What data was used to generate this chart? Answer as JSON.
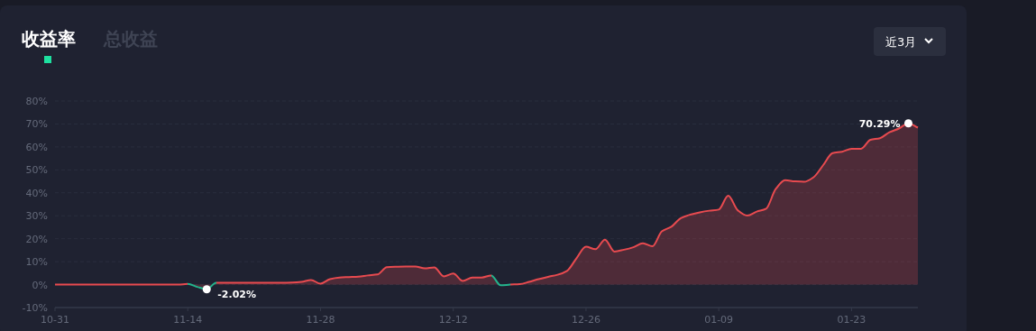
{
  "chart_data": {
    "type": "area",
    "title": "收益率",
    "annotations": [
      "总收益",
      "近3月"
    ],
    "categories": [
      "10-31",
      null,
      null,
      null,
      null,
      null,
      null,
      null,
      null,
      null,
      null,
      null,
      null,
      null,
      "11-14",
      null,
      null,
      null,
      null,
      null,
      null,
      null,
      null,
      null,
      null,
      null,
      null,
      null,
      "11-28",
      null,
      null,
      null,
      null,
      null,
      null,
      null,
      null,
      null,
      null,
      null,
      null,
      null,
      "12-12",
      null,
      null,
      null,
      null,
      null,
      null,
      null,
      null,
      null,
      null,
      null,
      null,
      null,
      "12-26",
      null,
      null,
      null,
      null,
      null,
      null,
      null,
      null,
      null,
      null,
      null,
      null,
      null,
      "01-09",
      null,
      null,
      null,
      null,
      null,
      null,
      null,
      null,
      null,
      null,
      null,
      null,
      null,
      "01-23",
      null,
      null,
      null,
      null,
      null,
      null,
      null
    ],
    "series": [
      {
        "values": [
          0,
          0,
          0,
          0,
          0,
          0,
          0,
          0,
          0,
          0,
          0,
          0,
          0,
          0,
          0.3,
          -1,
          -2.02,
          0.8,
          0.8,
          0.8,
          0.8,
          0.8,
          0.8,
          0.8,
          0.8,
          0.9,
          1.2,
          2,
          0.4,
          2.4,
          3.1,
          3.3,
          3.5,
          4,
          4.4,
          7.6,
          7.8,
          7.9,
          7.9,
          7.1,
          7.5,
          3.6,
          4.8,
          1.6,
          3.1,
          3.1,
          4,
          -0.3,
          0,
          0.2,
          1.2,
          2.4,
          3.4,
          4.3,
          6,
          11.5,
          16.5,
          15.4,
          19.6,
          14.4,
          15.2,
          16.3,
          18,
          16.7,
          23.2,
          25.2,
          29,
          30.5,
          31.5,
          32.2,
          32.7,
          38.7,
          32.4,
          30.1,
          31.8,
          33.1,
          41.6,
          45.5,
          45,
          44.8,
          46.8,
          52,
          57.3,
          57.9,
          59.2,
          59.2,
          63.1,
          63.8,
          66.4,
          68,
          70.29,
          68.4
        ],
        "value_labels": [
          null,
          null,
          null,
          null,
          null,
          null,
          null,
          null,
          null,
          null,
          null,
          null,
          null,
          null,
          null,
          null,
          "-2.02%",
          null,
          null,
          null,
          null,
          null,
          null,
          null,
          null,
          null,
          null,
          null,
          null,
          null,
          null,
          null,
          null,
          null,
          null,
          null,
          null,
          null,
          null,
          null,
          null,
          null,
          null,
          null,
          null,
          null,
          null,
          null,
          null,
          null,
          null,
          null,
          null,
          null,
          null,
          null,
          null,
          null,
          null,
          null,
          null,
          null,
          null,
          null,
          null,
          null,
          null,
          null,
          null,
          null,
          null,
          null,
          null,
          null,
          null,
          null,
          null,
          null,
          null,
          null,
          null,
          null,
          null,
          null,
          null,
          null,
          null,
          null,
          null,
          null,
          "70.29%",
          null
        ],
        "colors": [
          "#e84a4f",
          "#e84a4f",
          "#e84a4f",
          "#e84a4f",
          "#e84a4f",
          "#e84a4f",
          "#e84a4f",
          "#e84a4f",
          "#e84a4f",
          "#e84a4f",
          "#e84a4f",
          "#e84a4f",
          "#e84a4f",
          "#e84a4f",
          "#e84a4f",
          "#22b48c",
          "#22b48c",
          "#e84a4f",
          "#e84a4f",
          "#e84a4f",
          "#e84a4f",
          "#e84a4f",
          "#e84a4f",
          "#e84a4f",
          "#e84a4f",
          "#e84a4f",
          "#e84a4f",
          "#e84a4f",
          "#e84a4f",
          "#e84a4f",
          "#e84a4f",
          "#e84a4f",
          "#e84a4f",
          "#e84a4f",
          "#e84a4f",
          "#e84a4f",
          "#e84a4f",
          "#e84a4f",
          "#e84a4f",
          "#e84a4f",
          "#e84a4f",
          "#e84a4f",
          "#e84a4f",
          "#e84a4f",
          "#e84a4f",
          "#e84a4f",
          "#e84a4f",
          "#22b48c",
          "#e84a4f",
          "#e84a4f",
          "#e84a4f",
          "#e84a4f",
          "#e84a4f",
          "#e84a4f",
          "#e84a4f",
          "#e84a4f",
          "#e84a4f",
          "#e84a4f",
          "#e84a4f",
          "#e84a4f",
          "#e84a4f",
          "#e84a4f",
          "#e84a4f",
          "#e84a4f",
          "#e84a4f",
          "#e84a4f",
          "#e84a4f",
          "#e84a4f",
          "#e84a4f",
          "#e84a4f",
          "#e84a4f",
          "#e84a4f",
          "#e84a4f",
          "#e84a4f",
          "#e84a4f",
          "#e84a4f",
          "#e84a4f",
          "#e84a4f",
          "#e84a4f",
          "#e84a4f",
          "#e84a4f",
          "#e84a4f",
          "#e84a4f",
          "#e84a4f",
          "#e84a4f",
          "#e84a4f",
          "#e84a4f",
          "#e84a4f",
          "#e84a4f",
          "#e84a4f",
          "#e84a4f",
          "#e84a4f"
        ]
      }
    ],
    "ylim": [
      -10,
      80
    ],
    "yticks": [
      {
        "value": -10,
        "label": "-10%"
      },
      {
        "value": 0,
        "label": "0%"
      },
      {
        "value": 10,
        "label": "10%"
      },
      {
        "value": 20,
        "label": "20%"
      },
      {
        "value": 30,
        "label": "30%"
      },
      {
        "value": 40,
        "label": "40%"
      },
      {
        "value": 50,
        "label": "50%"
      },
      {
        "value": 60,
        "label": "60%"
      },
      {
        "value": 70,
        "label": "70%"
      },
      {
        "value": 80,
        "label": "80%"
      }
    ],
    "grid": "y"
  }
}
